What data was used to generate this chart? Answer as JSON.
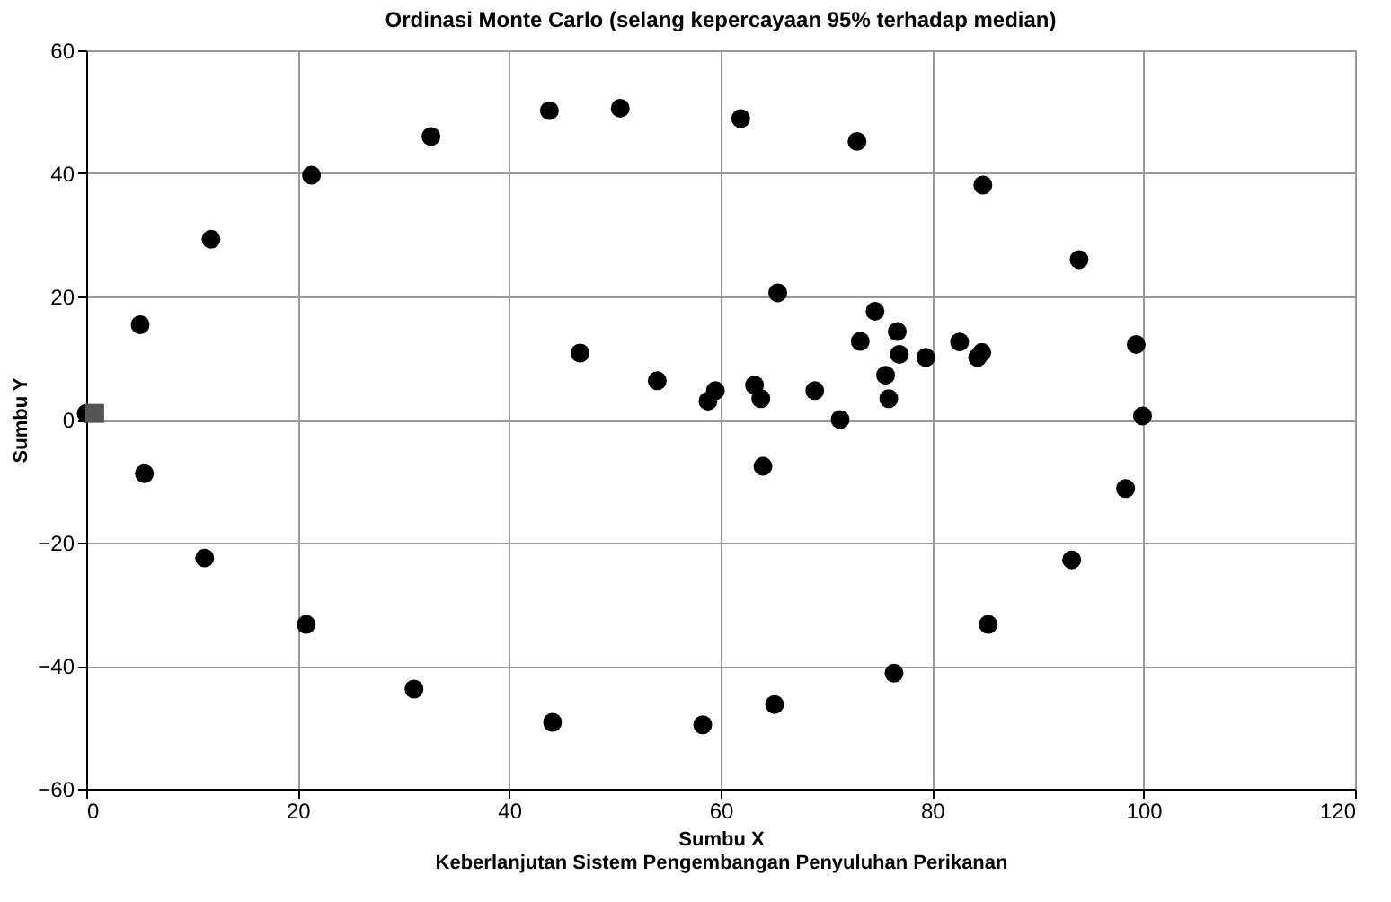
{
  "chart_data": {
    "type": "scatter",
    "title": "Ordinasi Monte Carlo (selang kepercayaan 95% terhadap median)",
    "xlabel": "Sumbu X\nKeberlanjutan Sistem Pengembangan Penyuluhan Perikanan",
    "ylabel": "Sumbu Y",
    "xlim": [
      0,
      120
    ],
    "xticks": [
      0,
      20,
      40,
      60,
      80,
      100,
      120
    ],
    "ylim": [
      -60,
      60
    ],
    "yticks": [
      -60,
      -40,
      -20,
      0,
      20,
      40,
      60
    ],
    "grid": true,
    "series": [
      {
        "color": "#000000",
        "marker": "circle",
        "x": [
          0.0,
          5.1,
          5.5,
          11.8,
          11.2,
          21.3,
          20.8,
          32.6,
          31.0,
          43.8,
          44.1,
          50.5,
          46.7,
          54.0,
          58.3,
          58.8,
          59.5,
          61.9,
          72.9,
          84.8,
          93.9,
          65.4,
          74.6,
          73.2,
          76.7,
          76.9,
          79.4,
          75.6,
          75.9,
          63.2,
          63.8,
          68.9,
          71.3,
          82.6,
          84.3,
          84.7,
          99.3,
          99.9,
          64.0,
          98.3,
          93.2,
          85.3,
          76.4,
          65.1
        ],
        "values": [
          1.0,
          15.4,
          -8.8,
          29.3,
          -22.5,
          39.7,
          -33.3,
          46.0,
          -43.8,
          50.2,
          -49.2,
          50.6,
          10.8,
          6.3,
          -49.6,
          3.0,
          4.7,
          48.9,
          45.2,
          38.1,
          26.0,
          20.6,
          17.6,
          12.7,
          14.3,
          10.6,
          10.1,
          7.2,
          3.4,
          5.6,
          3.4,
          4.7,
          0.0,
          12.6,
          10.1,
          10.9,
          12.2,
          0.6,
          -7.6,
          -11.2,
          -22.8,
          -33.3,
          -41.2,
          -46.3
        ]
      },
      {
        "color": "#555555",
        "marker": "square",
        "x": [
          0.8
        ],
        "values": [
          1.0
        ]
      }
    ]
  }
}
